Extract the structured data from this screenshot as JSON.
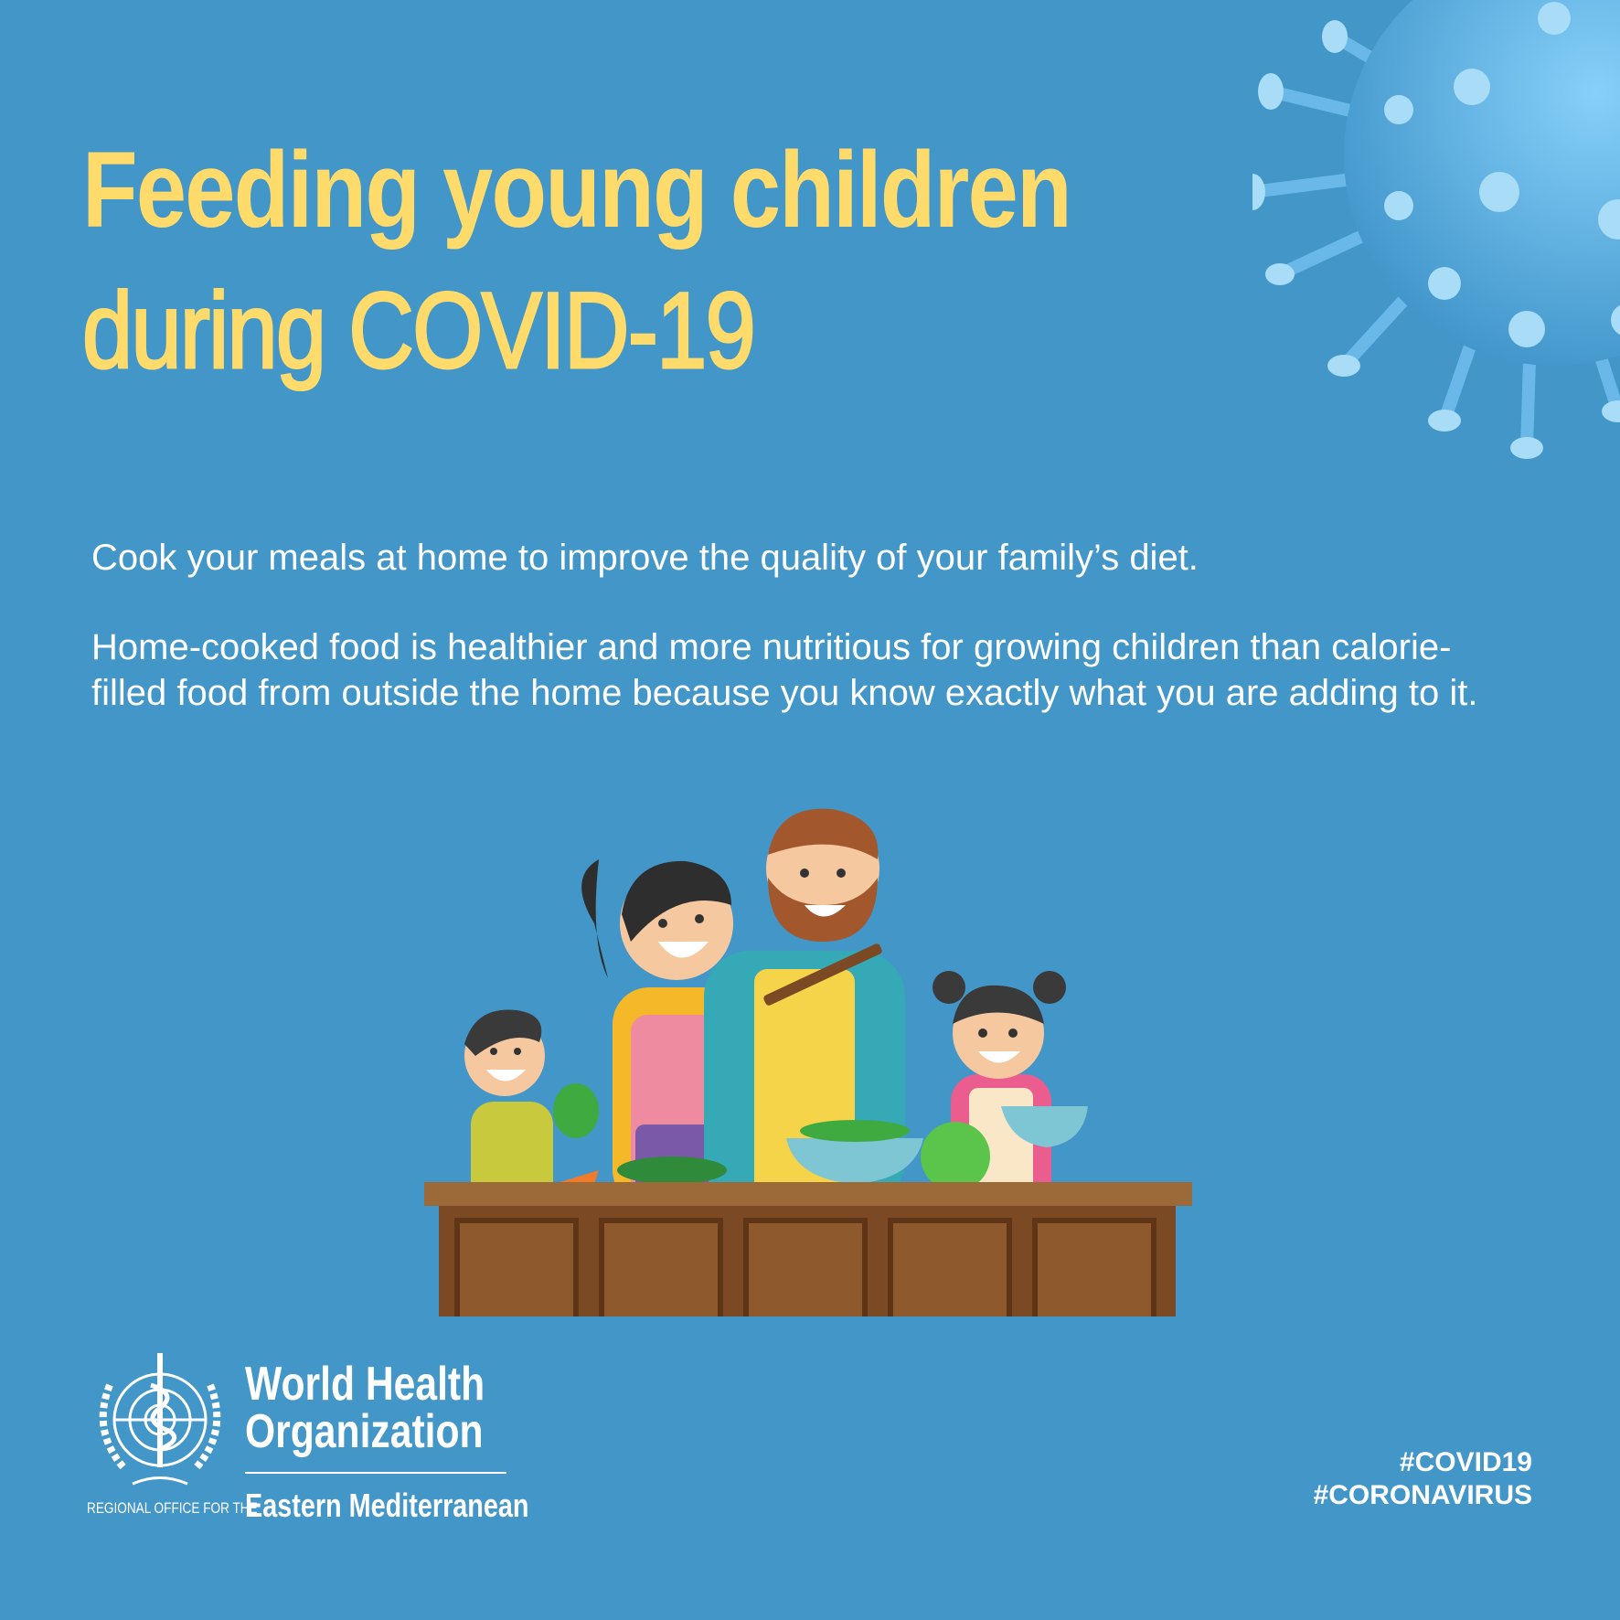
{
  "title": {
    "line1": "Feeding young children",
    "line2": "during COVID-19"
  },
  "body": {
    "paragraph1": "Cook your meals at home to improve the quality of your family’s diet.",
    "paragraph2": "Home-cooked food is healthier and more nutritious for growing children than calorie-filled food from outside the home because you know exactly what you are adding to it."
  },
  "footer": {
    "org_name": "World Health Organization",
    "org_line1": "World Health",
    "org_line2": "Organization",
    "region_prefix": "REGIONAL OFFICE FOR THE",
    "region_name": "Eastern Mediterranean",
    "hashtags": [
      "#COVID19",
      "#CORONAVIRUS"
    ]
  },
  "illustration": {
    "subject": "family-cooking-icon",
    "decoration": "virus-icon"
  },
  "colors": {
    "background": "#4396c8",
    "title": "#ffdb6b",
    "text": "#ffffff",
    "virus": "#7cc6f2"
  }
}
